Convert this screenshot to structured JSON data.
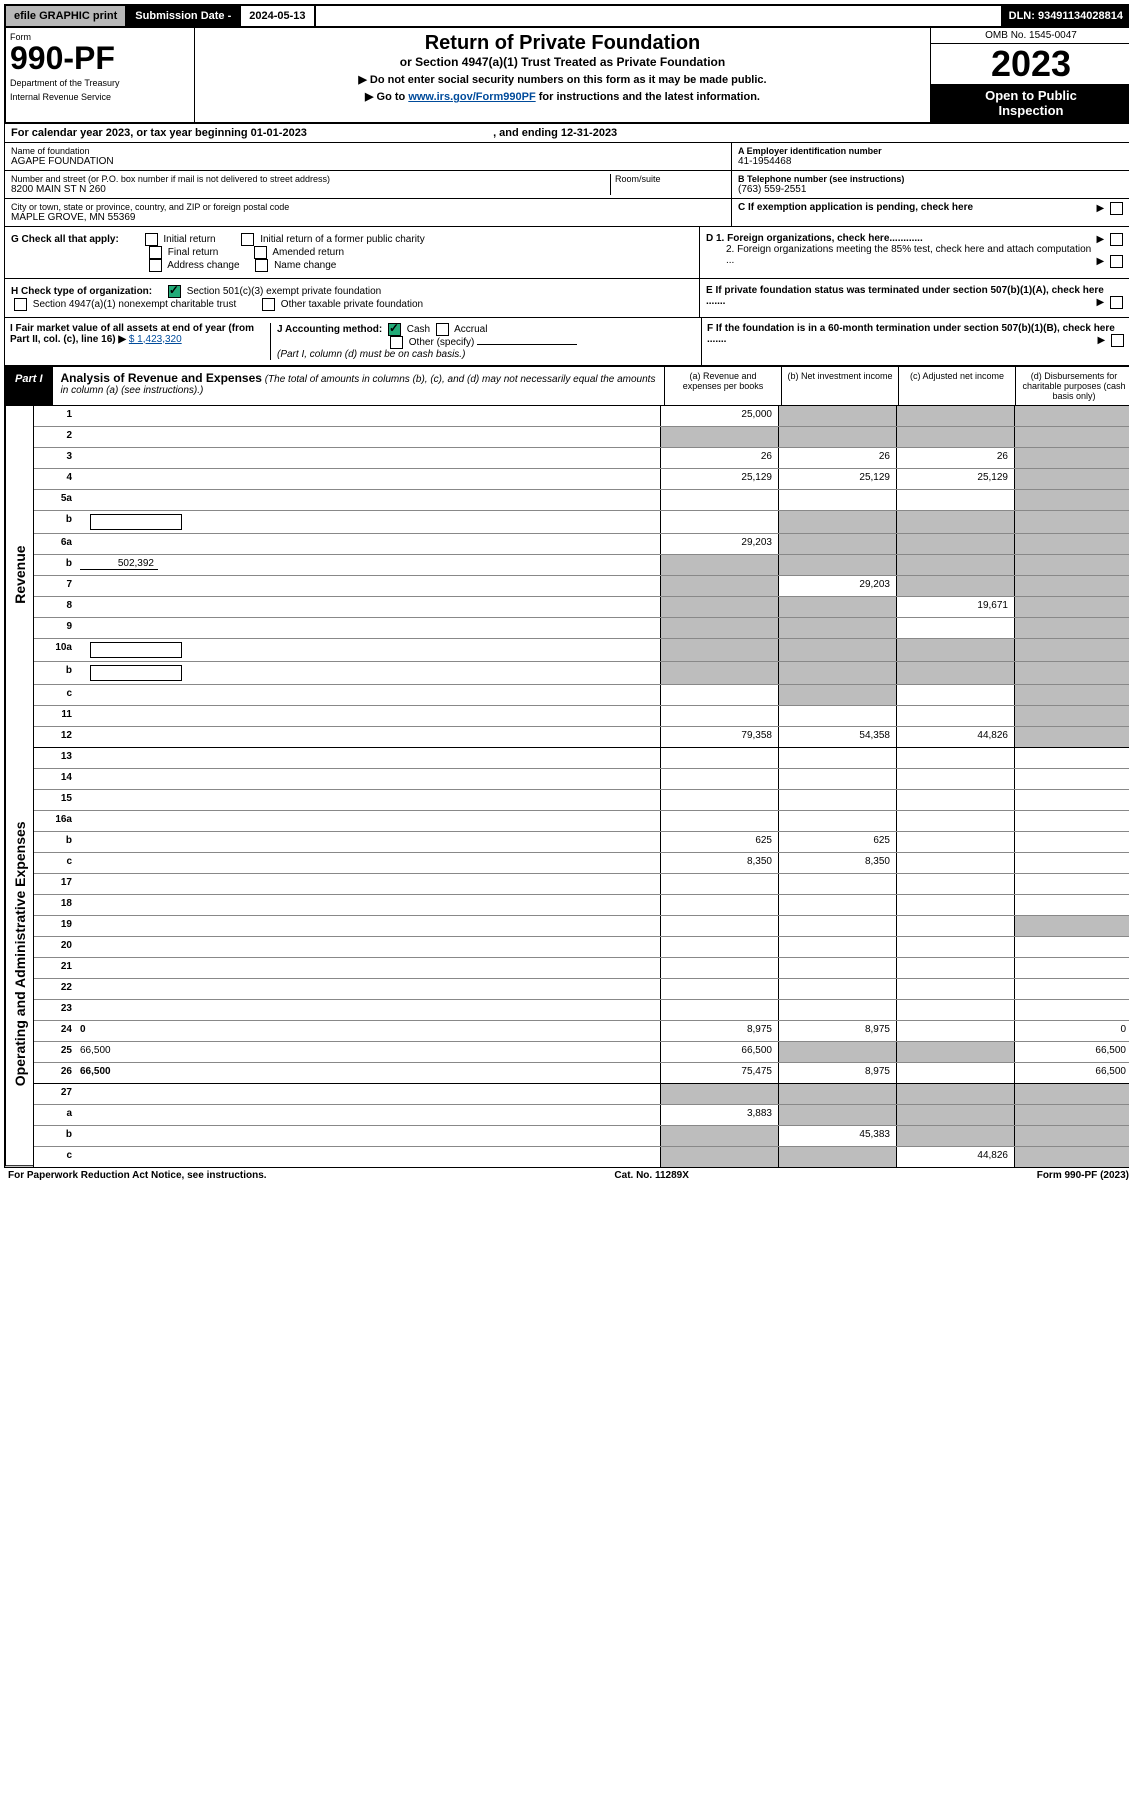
{
  "top": {
    "efile": "efile GRAPHIC print",
    "subdate_label": "Submission Date - ",
    "subdate": "2024-05-13",
    "dln_label": "DLN: ",
    "dln": "93491134028814"
  },
  "header": {
    "form_label": "Form",
    "form_number": "990-PF",
    "dept1": "Department of the Treasury",
    "dept2": "Internal Revenue Service",
    "title": "Return of Private Foundation",
    "subtitle": "or Section 4947(a)(1) Trust Treated as Private Foundation",
    "instr1": "▶ Do not enter social security numbers on this form as it may be made public.",
    "instr2a": "▶ Go to ",
    "instr2_link": "www.irs.gov/Form990PF",
    "instr2b": " for instructions and the latest information.",
    "omb": "OMB No. 1545-0047",
    "year": "2023",
    "open1": "Open to Public",
    "open2": "Inspection"
  },
  "calendar": {
    "text1": "For calendar year 2023, or tax year beginning ",
    "begin": "01-01-2023",
    "text2": " , and ending ",
    "end": "12-31-2023"
  },
  "id": {
    "name_label": "Name of foundation",
    "name": "AGAPE FOUNDATION",
    "addr_label": "Number and street (or P.O. box number if mail is not delivered to street address)",
    "room_label": "Room/suite",
    "addr": "8200 MAIN ST N 260",
    "city_label": "City or town, state or province, country, and ZIP or foreign postal code",
    "city": "MAPLE GROVE, MN  55369",
    "a_label": "A Employer identification number",
    "a_val": "41-1954468",
    "b_label": "B Telephone number (see instructions)",
    "b_val": "(763) 559-2551",
    "c_label": "C If exemption application is pending, check here",
    "d1": "D 1. Foreign organizations, check here............",
    "d2": "2. Foreign organizations meeting the 85% test, check here and attach computation ...",
    "e": "E  If private foundation status was terminated under section 507(b)(1)(A), check here .......",
    "f": "F  If the foundation is in a 60-month termination under section 507(b)(1)(B), check here .......",
    "g_label": "G Check all that apply:",
    "g_opts": [
      "Initial return",
      "Initial return of a former public charity",
      "Final return",
      "Amended return",
      "Address change",
      "Name change"
    ],
    "h_label": "H Check type of organization:",
    "h_501c3": "Section 501(c)(3) exempt private foundation",
    "h_4947": "Section 4947(a)(1) nonexempt charitable trust",
    "h_other": "Other taxable private foundation",
    "i_label": "I Fair market value of all assets at end of year (from Part II, col. (c), line 16) ▶",
    "i_val": "$  1,423,320",
    "j_label": "J Accounting method:",
    "j_cash": "Cash",
    "j_accrual": "Accrual",
    "j_other": "Other (specify)",
    "j_note": "(Part I, column (d) must be on cash basis.)"
  },
  "part1": {
    "label": "Part I",
    "title": "Analysis of Revenue and Expenses",
    "note": " (The total of amounts in columns (b), (c), and (d) may not necessarily equal the amounts in column (a) (see instructions).)",
    "col_a": "(a)   Revenue and expenses per books",
    "col_b": "(b)   Net investment income",
    "col_c": "(c)   Adjusted net income",
    "col_d": "(d)   Disbursements for charitable purposes (cash basis only)"
  },
  "vlabels": {
    "rev": "Revenue",
    "exp": "Operating and Administrative Expenses"
  },
  "rows": [
    {
      "n": "1",
      "d": "",
      "a": "25,000",
      "b": "",
      "c": "",
      "bg": true,
      "cg": true,
      "dg": true
    },
    {
      "n": "2",
      "d": "",
      "a": "",
      "b": "",
      "c": "",
      "ag": true,
      "bg": true,
      "cg": true,
      "dg": true,
      "bold_not": true
    },
    {
      "n": "3",
      "d": "",
      "a": "26",
      "b": "26",
      "c": "26",
      "dg": true
    },
    {
      "n": "4",
      "d": "",
      "a": "25,129",
      "b": "25,129",
      "c": "25,129",
      "dg": true
    },
    {
      "n": "5a",
      "d": "",
      "a": "",
      "b": "",
      "c": "",
      "dg": true
    },
    {
      "n": "b",
      "d": "",
      "a": "",
      "b": "",
      "c": "",
      "desc_box": true,
      "bg": true,
      "cg": true,
      "dg": true
    },
    {
      "n": "6a",
      "d": "",
      "a": "29,203",
      "b": "",
      "c": "",
      "bg": true,
      "cg": true,
      "dg": true
    },
    {
      "n": "b",
      "d": "",
      "inline": "502,392",
      "a": "",
      "b": "",
      "c": "",
      "ag": true,
      "bg": true,
      "cg": true,
      "dg": true
    },
    {
      "n": "7",
      "d": "",
      "a": "",
      "b": "29,203",
      "c": "",
      "ag": true,
      "cg": true,
      "dg": true
    },
    {
      "n": "8",
      "d": "",
      "a": "",
      "b": "",
      "c": "19,671",
      "ag": true,
      "bg": true,
      "dg": true
    },
    {
      "n": "9",
      "d": "",
      "a": "",
      "b": "",
      "c": "",
      "ag": true,
      "bg": true,
      "dg": true
    },
    {
      "n": "10a",
      "d": "",
      "a": "",
      "b": "",
      "c": "",
      "desc_box": true,
      "ag": true,
      "bg": true,
      "cg": true,
      "dg": true
    },
    {
      "n": "b",
      "d": "",
      "a": "",
      "b": "",
      "c": "",
      "desc_box": true,
      "ag": true,
      "bg": true,
      "cg": true,
      "dg": true
    },
    {
      "n": "c",
      "d": "",
      "a": "",
      "b": "",
      "c": "",
      "bg": true,
      "dg": true
    },
    {
      "n": "11",
      "d": "",
      "a": "",
      "b": "",
      "c": "",
      "dg": true
    },
    {
      "n": "12",
      "d": "",
      "a": "79,358",
      "b": "54,358",
      "c": "44,826",
      "bold": true,
      "dg": true,
      "end": true
    },
    {
      "n": "13",
      "d": "",
      "a": "",
      "b": "",
      "c": ""
    },
    {
      "n": "14",
      "d": "",
      "a": "",
      "b": "",
      "c": ""
    },
    {
      "n": "15",
      "d": "",
      "a": "",
      "b": "",
      "c": ""
    },
    {
      "n": "16a",
      "d": "",
      "a": "",
      "b": "",
      "c": ""
    },
    {
      "n": "b",
      "d": "",
      "a": "625",
      "b": "625",
      "c": ""
    },
    {
      "n": "c",
      "d": "",
      "a": "8,350",
      "b": "8,350",
      "c": ""
    },
    {
      "n": "17",
      "d": "",
      "a": "",
      "b": "",
      "c": ""
    },
    {
      "n": "18",
      "d": "",
      "a": "",
      "b": "",
      "c": ""
    },
    {
      "n": "19",
      "d": "",
      "a": "",
      "b": "",
      "c": "",
      "dg": true
    },
    {
      "n": "20",
      "d": "",
      "a": "",
      "b": "",
      "c": ""
    },
    {
      "n": "21",
      "d": "",
      "a": "",
      "b": "",
      "c": ""
    },
    {
      "n": "22",
      "d": "",
      "a": "",
      "b": "",
      "c": ""
    },
    {
      "n": "23",
      "d": "",
      "a": "",
      "b": "",
      "c": ""
    },
    {
      "n": "24",
      "d": "0",
      "a": "8,975",
      "b": "8,975",
      "c": "",
      "bold": true
    },
    {
      "n": "25",
      "d": "66,500",
      "a": "66,500",
      "b": "",
      "c": "",
      "bg": true,
      "cg": true
    },
    {
      "n": "26",
      "d": "66,500",
      "a": "75,475",
      "b": "8,975",
      "c": "",
      "bold": true,
      "end": true
    },
    {
      "n": "27",
      "d": "",
      "a": "",
      "b": "",
      "c": "",
      "ag": true,
      "bg": true,
      "cg": true,
      "dg": true
    },
    {
      "n": "a",
      "d": "",
      "a": "3,883",
      "b": "",
      "c": "",
      "bold": true,
      "bg": true,
      "cg": true,
      "dg": true
    },
    {
      "n": "b",
      "d": "",
      "a": "",
      "b": "45,383",
      "c": "",
      "bold": true,
      "ag": true,
      "cg": true,
      "dg": true
    },
    {
      "n": "c",
      "d": "",
      "a": "",
      "b": "",
      "c": "44,826",
      "bold": true,
      "ag": true,
      "bg": true,
      "dg": true
    }
  ],
  "footer": {
    "left": "For Paperwork Reduction Act Notice, see instructions.",
    "mid": "Cat. No. 11289X",
    "right": "Form 990-PF (2023)"
  }
}
